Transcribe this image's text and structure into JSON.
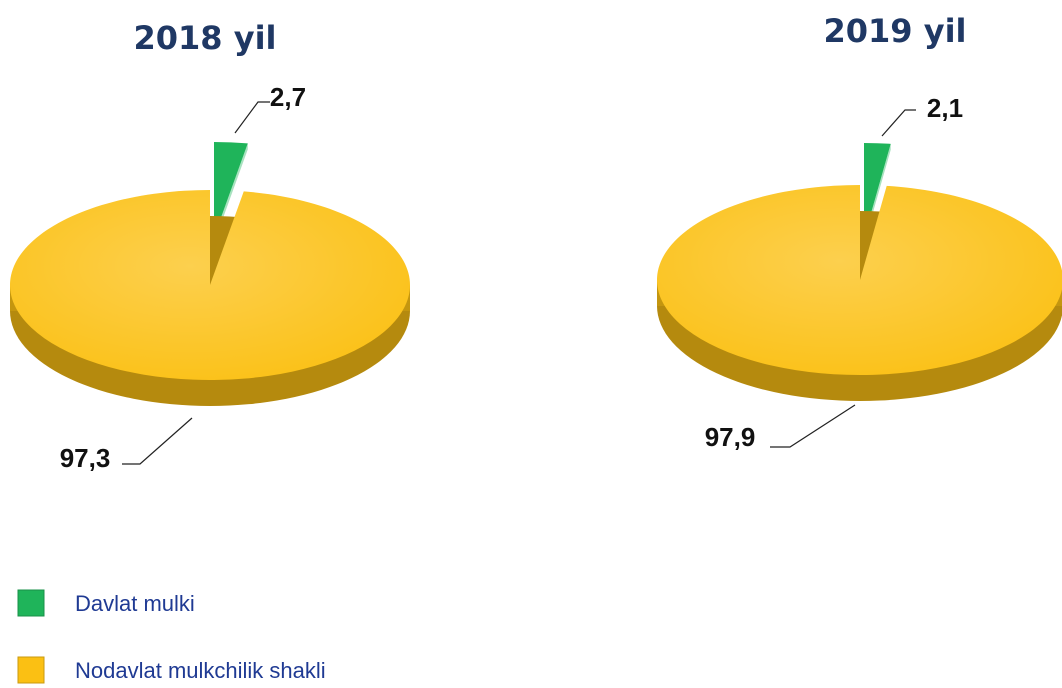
{
  "chart_data": [
    {
      "type": "pie",
      "title": "2018 yil",
      "values": [
        2.7,
        97.3
      ],
      "value_labels": [
        "2,7",
        "97,3"
      ],
      "colors": [
        "#1fb45a",
        "#fbc013"
      ]
    },
    {
      "type": "pie",
      "title": "2019 yil",
      "values": [
        2.1,
        97.9
      ],
      "value_labels": [
        "2,1",
        "97,9"
      ],
      "colors": [
        "#1fb45a",
        "#fbc013"
      ]
    }
  ],
  "legend": {
    "entries": [
      {
        "name": "Davlat mulki",
        "color": "#1fb45a"
      },
      {
        "name": "Nodavlat mulkchilik shakli",
        "color": "#fbc013"
      }
    ]
  }
}
